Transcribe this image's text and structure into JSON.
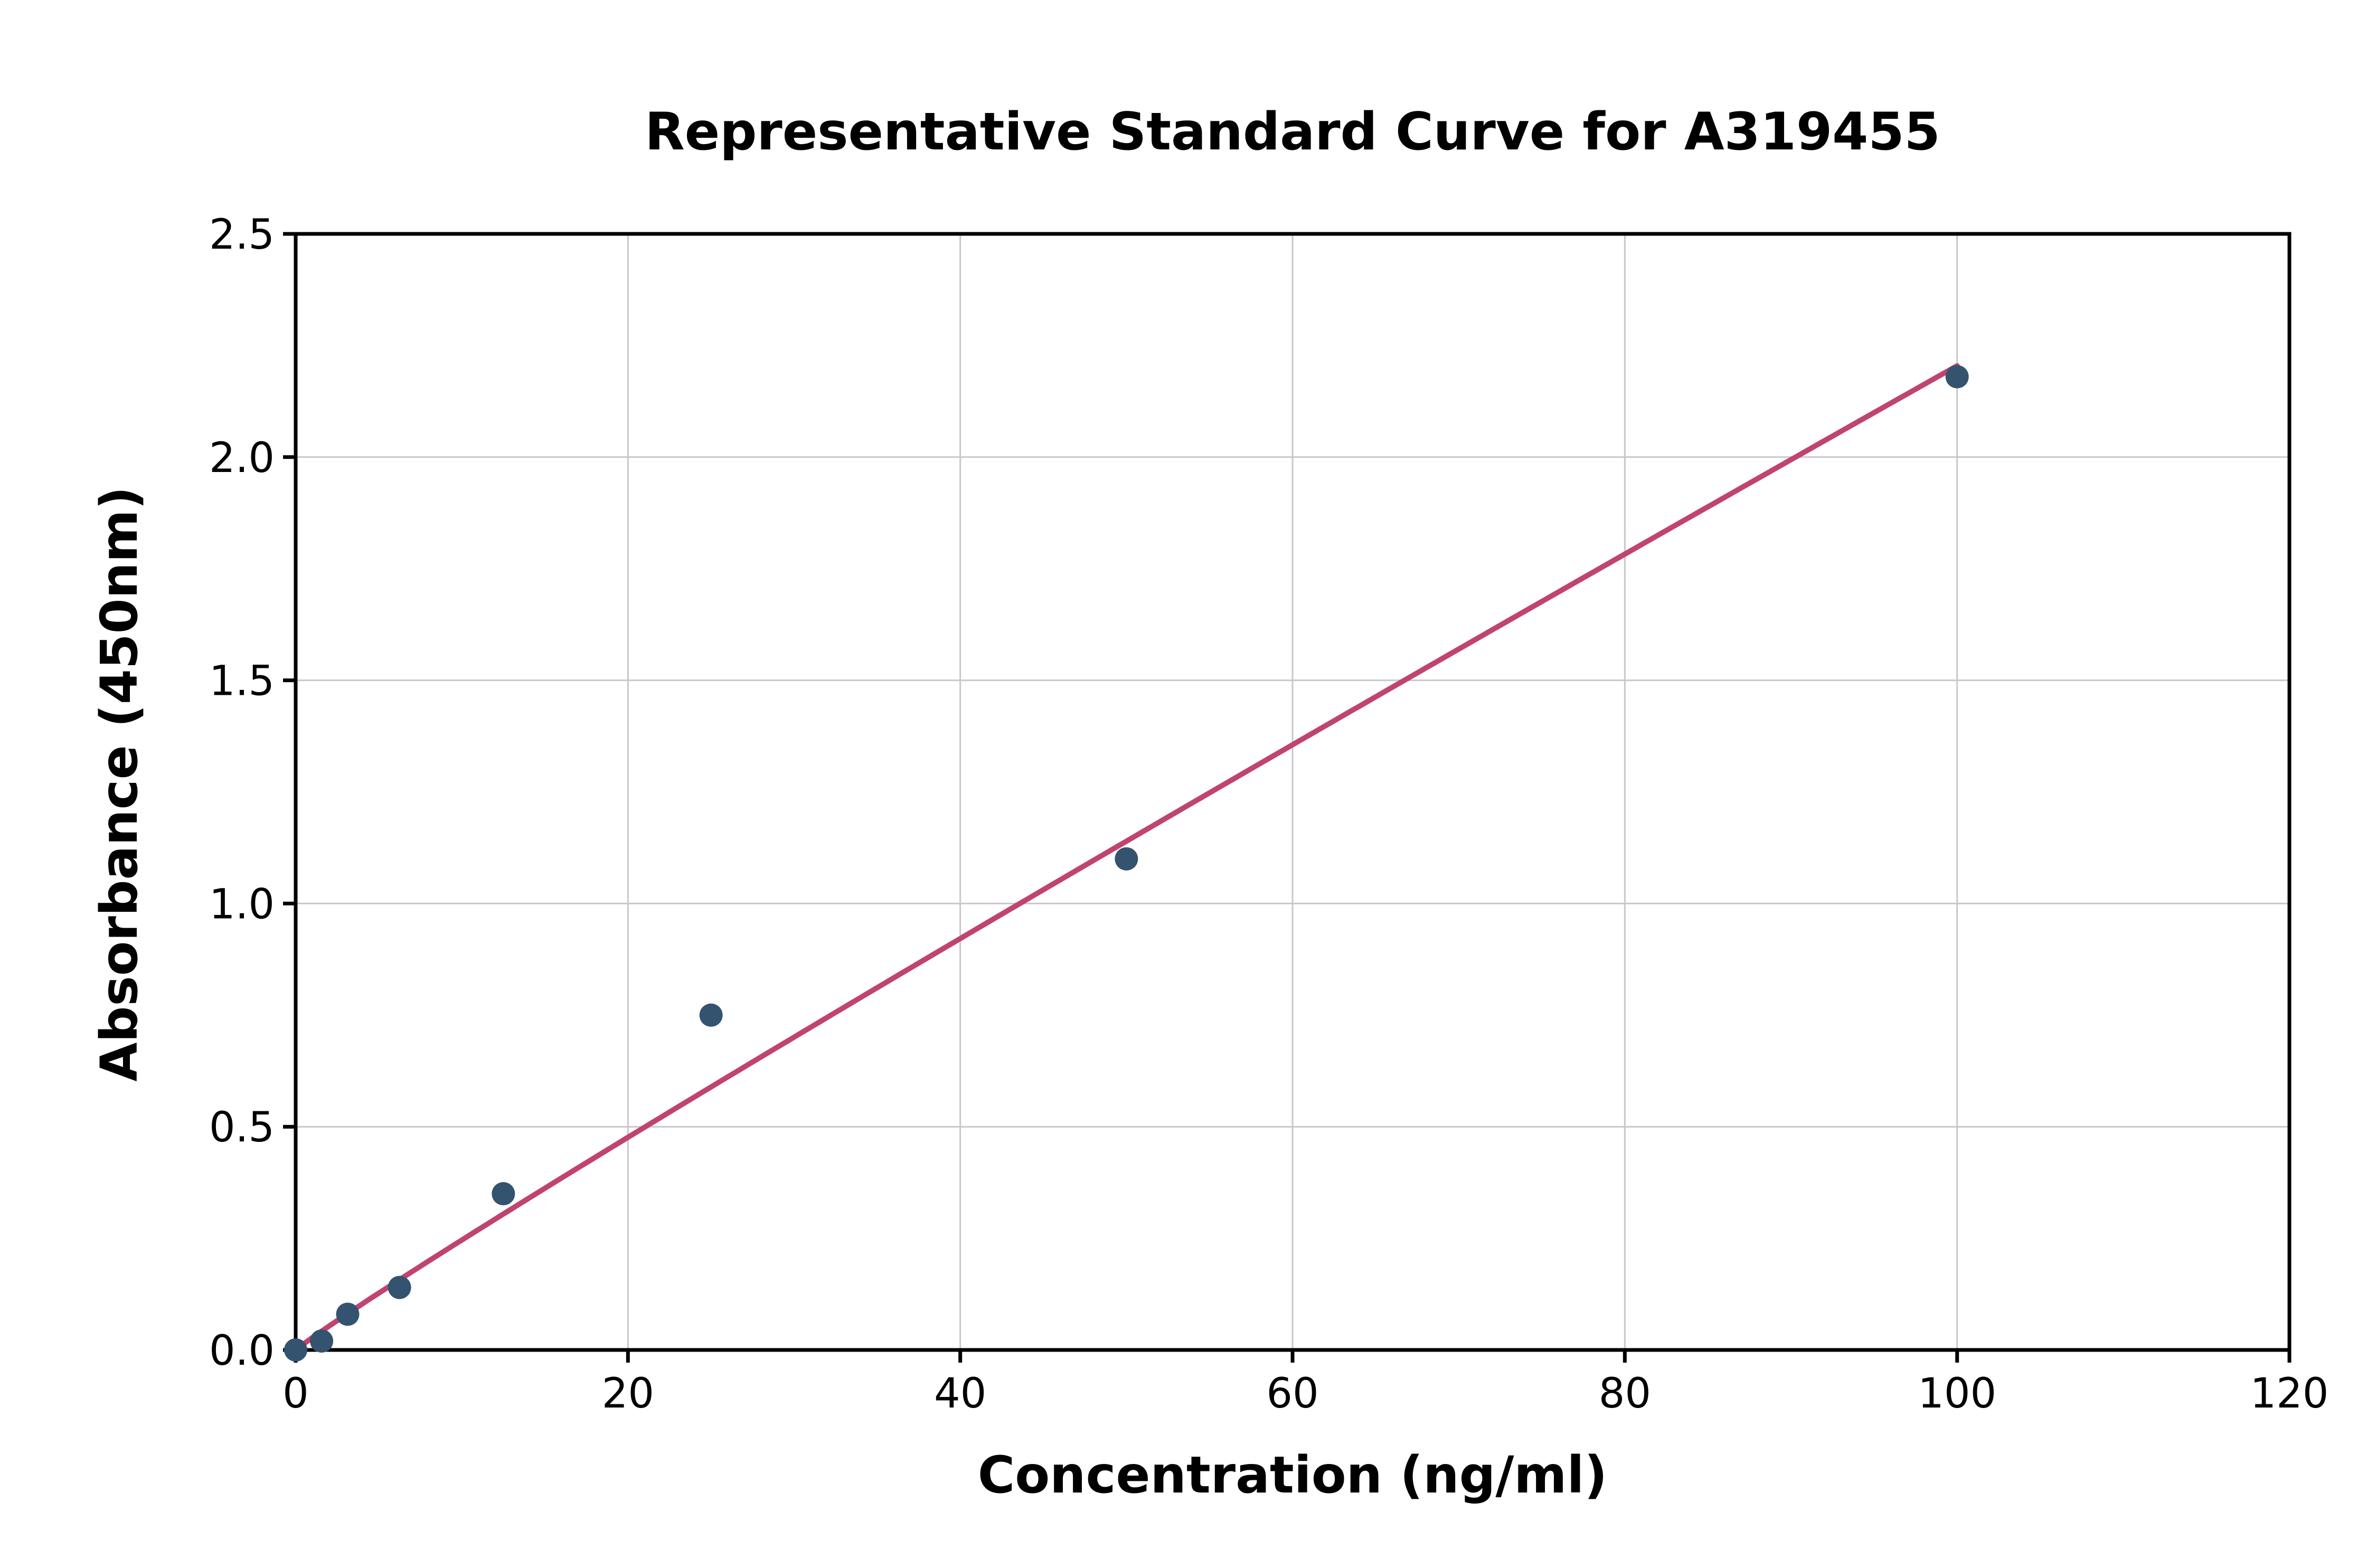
{
  "page": {
    "background": "#ffffff"
  },
  "chart_data": {
    "type": "scatter",
    "title": "Representative Standard Curve for A319455",
    "xlabel": "Concentration (ng/ml)",
    "ylabel": "Absorbance (450nm)",
    "xlim": [
      0,
      120
    ],
    "ylim": [
      0,
      2.5
    ],
    "xticks": [
      0,
      20,
      40,
      60,
      80,
      100,
      120
    ],
    "xtick_labels": [
      "0",
      "20",
      "40",
      "60",
      "80",
      "100",
      "120"
    ],
    "yticks": [
      0.0,
      0.5,
      1.0,
      1.5,
      2.0,
      2.5
    ],
    "ytick_labels": [
      "0.0",
      "0.5",
      "1.0",
      "1.5",
      "2.0",
      "2.5"
    ],
    "grid": true,
    "legend": false,
    "points": {
      "x": [
        0,
        1.56,
        3.13,
        6.25,
        12.5,
        25,
        50,
        100
      ],
      "y": [
        0.0,
        0.02,
        0.08,
        0.14,
        0.35,
        0.75,
        1.1,
        2.18
      ]
    },
    "fit": {
      "type": "power",
      "a": 0.0275,
      "b": 0.952,
      "x_start": 0,
      "x_end": 100
    },
    "colors": {
      "marker": "#34536e",
      "line": "#c0446f",
      "grid": "#c8c8c8",
      "spine": "#000000",
      "text": "#000000"
    }
  }
}
